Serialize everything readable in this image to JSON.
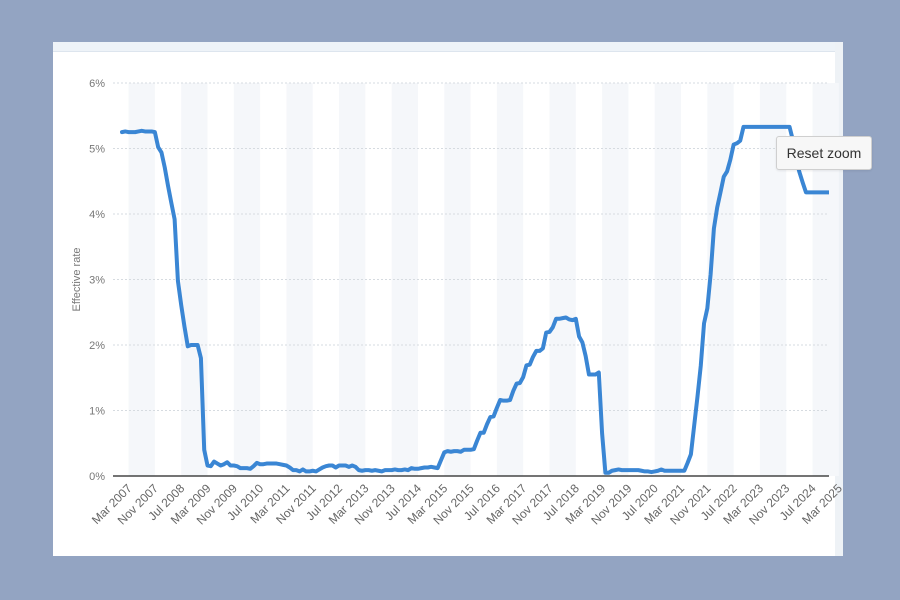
{
  "reset_zoom_label": "Reset zoom",
  "colors": {
    "line": "#3a86d4",
    "grid": "#d6dbe0",
    "axis": "#222222",
    "text": "#777777",
    "page_bg": "#93a4c2"
  },
  "chart_data": {
    "type": "line",
    "title": "",
    "xlabel": "",
    "ylabel": "Effective rate",
    "ylim": [
      0,
      6
    ],
    "y_ticks": [
      "0%",
      "1%",
      "2%",
      "3%",
      "4%",
      "5%",
      "6%"
    ],
    "grid": true,
    "x_tick_labels": [
      "Mar 2007",
      "Nov 2007",
      "Jul 2008",
      "Mar 2009",
      "Nov 2009",
      "Jul 2010",
      "Mar 2011",
      "Nov 2011",
      "Jul 2012",
      "Mar 2013",
      "Nov 2013",
      "Jul 2014",
      "Mar 2015",
      "Nov 2015",
      "Jul 2016",
      "Mar 2017",
      "Nov 2017",
      "Jul 2018",
      "Mar 2019",
      "Nov 2019",
      "Jul 2020",
      "Mar 2021",
      "Nov 2021",
      "Jul 2022",
      "Mar 2023",
      "Nov 2023",
      "Jul 2024",
      "Mar 2025"
    ],
    "x_start": "2007-01",
    "series": [
      {
        "values": [
          5.25,
          5.26,
          5.25,
          5.25,
          5.25,
          5.26,
          5.27,
          5.26,
          5.26,
          5.26,
          5.25,
          5.02,
          4.94,
          4.71,
          4.43,
          4.17,
          3.92,
          2.98,
          2.61,
          2.28,
          1.98,
          2.0,
          2.0,
          2.0,
          1.8,
          0.4,
          0.16,
          0.15,
          0.22,
          0.19,
          0.16,
          0.18,
          0.21,
          0.16,
          0.16,
          0.15,
          0.12,
          0.12,
          0.12,
          0.11,
          0.15,
          0.2,
          0.18,
          0.18,
          0.19,
          0.19,
          0.19,
          0.19,
          0.18,
          0.17,
          0.16,
          0.13,
          0.09,
          0.09,
          0.07,
          0.1,
          0.07,
          0.07,
          0.08,
          0.07,
          0.1,
          0.13,
          0.15,
          0.16,
          0.16,
          0.13,
          0.16,
          0.16,
          0.16,
          0.14,
          0.16,
          0.14,
          0.09,
          0.08,
          0.09,
          0.09,
          0.08,
          0.09,
          0.08,
          0.07,
          0.09,
          0.09,
          0.09,
          0.1,
          0.09,
          0.09,
          0.1,
          0.09,
          0.12,
          0.11,
          0.11,
          0.12,
          0.13,
          0.13,
          0.14,
          0.13,
          0.12,
          0.24,
          0.36,
          0.38,
          0.37,
          0.38,
          0.38,
          0.37,
          0.4,
          0.4,
          0.4,
          0.41,
          0.54,
          0.66,
          0.66,
          0.79,
          0.9,
          0.91,
          1.04,
          1.16,
          1.15,
          1.15,
          1.16,
          1.3,
          1.41,
          1.42,
          1.51,
          1.69,
          1.7,
          1.82,
          1.91,
          1.91,
          1.95,
          2.19,
          2.2,
          2.27,
          2.4,
          2.4,
          2.41,
          2.42,
          2.39,
          2.38,
          2.4,
          2.13,
          2.04,
          1.83,
          1.55,
          1.55,
          1.55,
          1.58,
          0.65,
          0.05,
          0.05,
          0.08,
          0.09,
          0.1,
          0.09,
          0.09,
          0.09,
          0.09,
          0.09,
          0.09,
          0.08,
          0.07,
          0.07,
          0.06,
          0.07,
          0.08,
          0.1,
          0.08,
          0.08,
          0.08,
          0.08,
          0.08,
          0.08,
          0.08,
          0.2,
          0.33,
          0.77,
          1.21,
          1.68,
          2.33,
          2.56,
          3.08,
          3.78,
          4.1,
          4.33,
          4.57,
          4.65,
          4.83,
          5.06,
          5.08,
          5.12,
          5.33,
          5.33,
          5.33,
          5.33,
          5.33,
          5.33,
          5.33,
          5.33,
          5.33,
          5.33,
          5.33,
          5.33,
          5.33,
          5.33,
          5.33,
          5.13,
          4.83,
          4.64,
          4.48,
          4.33,
          4.33,
          4.33,
          4.33,
          4.33,
          4.33,
          4.33,
          4.33
        ]
      }
    ]
  }
}
